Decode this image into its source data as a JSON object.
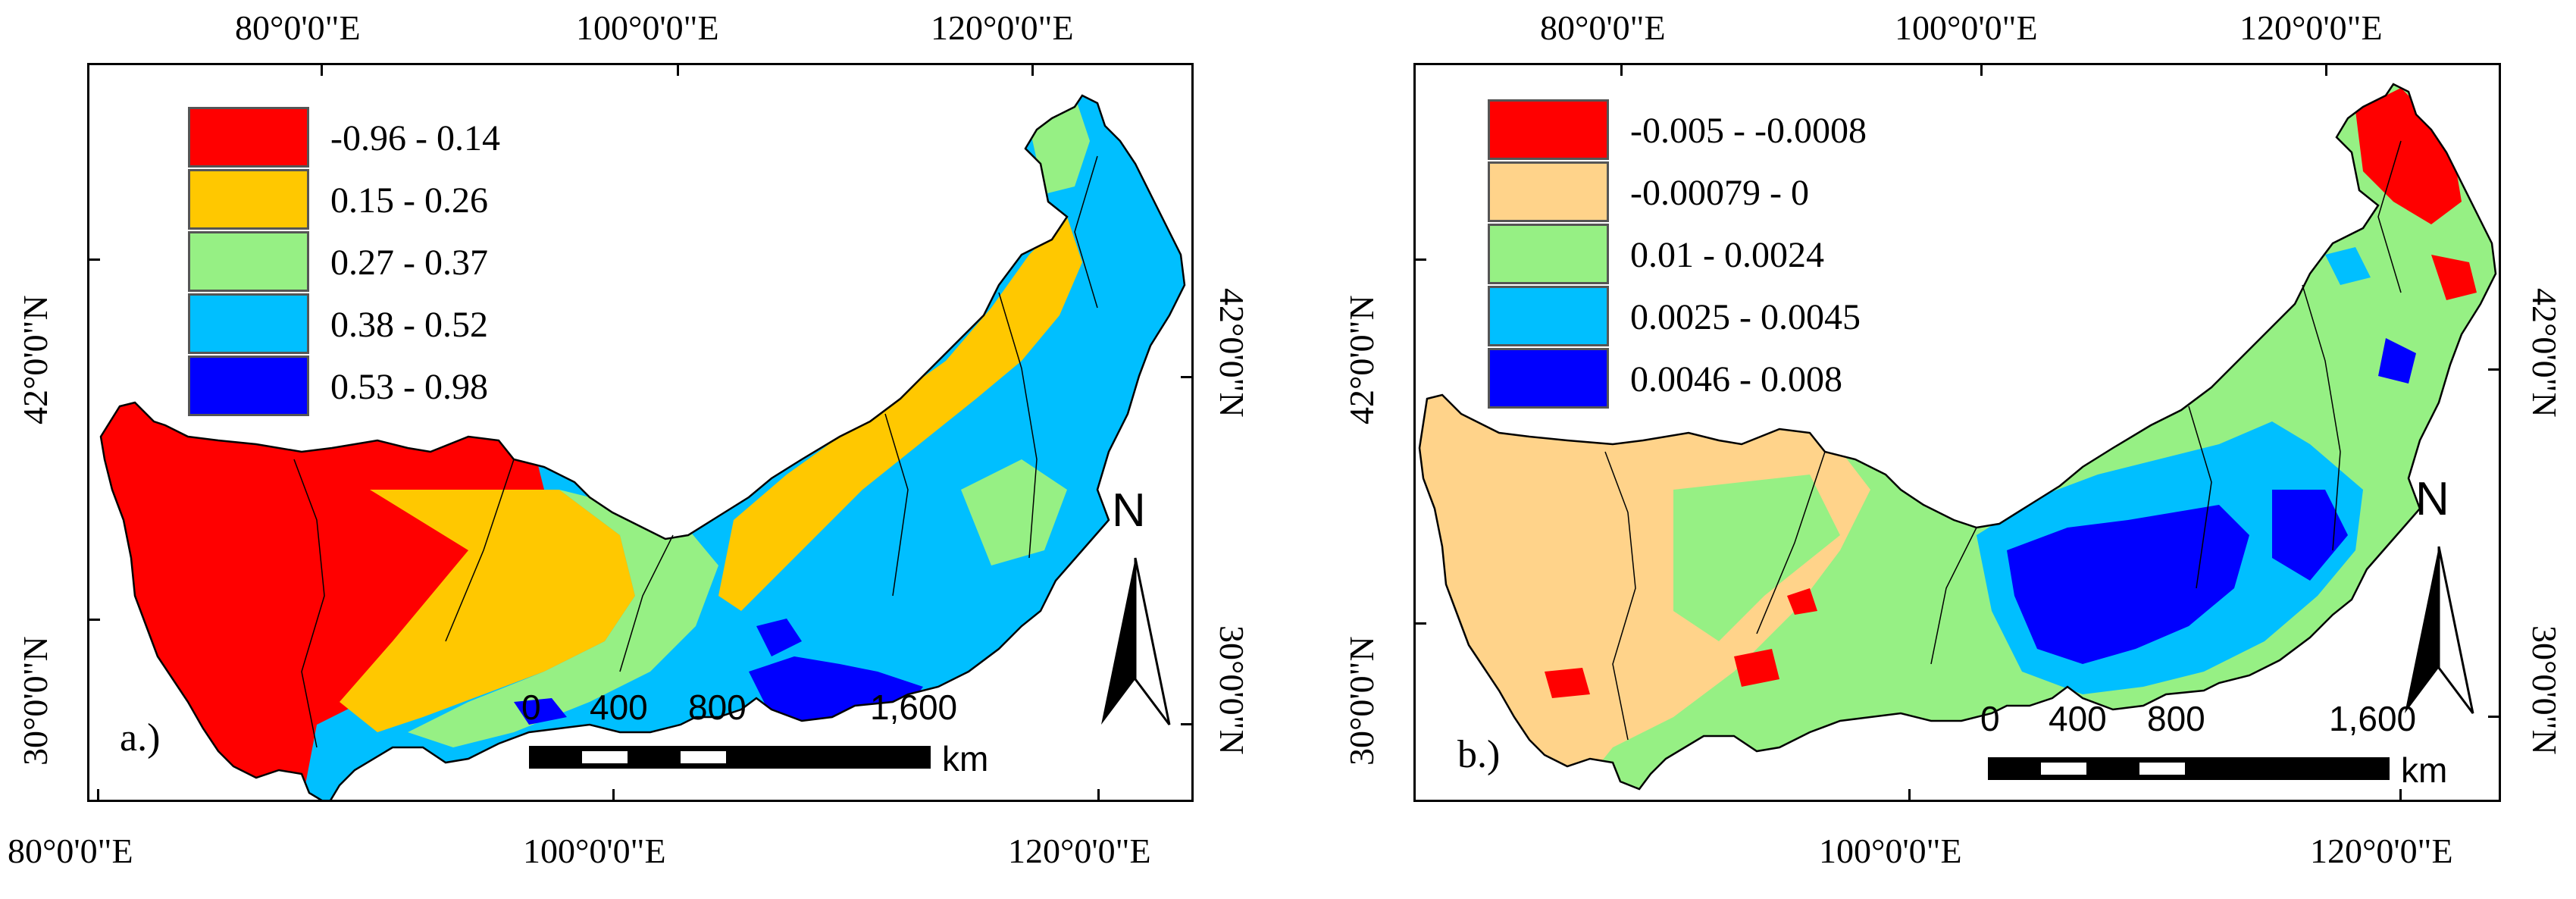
{
  "colors": {
    "a": [
      "#ff0000",
      "#ffc800",
      "#96f084",
      "#00bfff",
      "#0000ff"
    ],
    "b": [
      "#ff0000",
      "#ffd38a",
      "#96f084",
      "#00bfff",
      "#0000ff"
    ]
  },
  "panel_a": {
    "label": "a.)",
    "legend": [
      {
        "label": "-0.96 - 0.14"
      },
      {
        "label": "0.15 - 0.26"
      },
      {
        "label": "0.27 - 0.37"
      },
      {
        "label": "0.38 - 0.52"
      },
      {
        "label": "0.53 - 0.98"
      }
    ],
    "top_ticks": [
      "80°0'0\"E",
      "100°0'0\"E",
      "120°0'0\"E"
    ],
    "bottom_ticks": [
      "80°0'0\"E",
      "100°0'0\"E",
      "120°0'0\"E"
    ],
    "left_ticks": [
      "42°0'0\"N",
      "30°0'0\"N"
    ],
    "right_ticks": [
      "42°0'0\"N",
      "30°0'0\"N"
    ],
    "scale": {
      "labels": [
        "0",
        "400",
        "800",
        "1,600"
      ],
      "unit": "km"
    },
    "north": "N"
  },
  "panel_b": {
    "label": "b.)",
    "legend": [
      {
        "label": "-0.005 - -0.0008"
      },
      {
        "label": "-0.00079 - 0"
      },
      {
        "label": "0.01 - 0.0024"
      },
      {
        "label": "0.0025 - 0.0045"
      },
      {
        "label": "0.0046 - 0.008"
      }
    ],
    "top_ticks": [
      "80°0'0\"E",
      "100°0'0\"E",
      "120°0'0\"E"
    ],
    "bottom_ticks": [
      "100°0'0\"E",
      "120°0'0\"E"
    ],
    "left_ticks": [
      "42°0'0\"N",
      "30°0'0\"N"
    ],
    "right_ticks": [
      "42°0'0\"N",
      "30°0'0\"N"
    ],
    "scale": {
      "labels": [
        "0",
        "400",
        "800",
        "1,600"
      ],
      "unit": "km"
    },
    "north": "N"
  }
}
